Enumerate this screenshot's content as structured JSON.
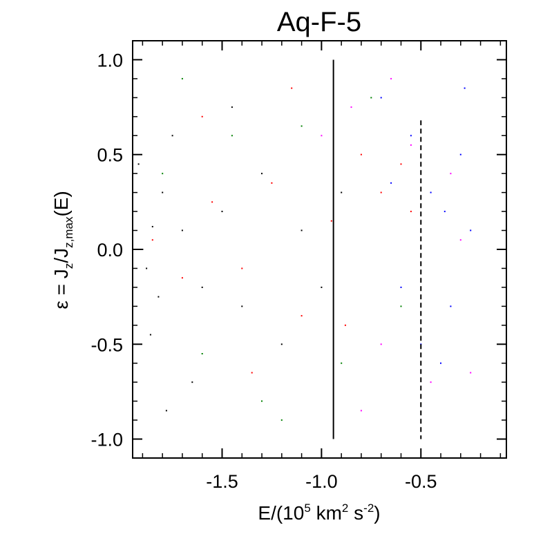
{
  "chart_data": {
    "type": "scatter",
    "title": "Aq-F-5",
    "xlabel": {
      "pre": "E/(10",
      "sup1": "5",
      "mid": " km",
      "sup2": "2",
      "mid2": " s",
      "sup3": "-2",
      "post": ")"
    },
    "ylabel": {
      "eps": "ε",
      "eq": " = J",
      "sub1": "z",
      "slash": "/J",
      "sub2": "z,max",
      "post": "(E)"
    },
    "xlim": [
      -1.95,
      -0.07
    ],
    "ylim": [
      -1.1,
      1.1
    ],
    "xticks": [
      -1.5,
      -1.0,
      -0.5
    ],
    "xtick_labels": [
      "-1.5",
      "-1.0",
      "-0.5"
    ],
    "yticks": [
      1.0,
      0.5,
      0.0,
      -0.5,
      -1.0
    ],
    "ytick_labels": [
      "1.0",
      "0.5",
      "0.0",
      "-0.5",
      "-1.0"
    ],
    "vertical_lines": [
      {
        "x": -0.94,
        "style": "solid",
        "y_range": [
          -1.0,
          1.0
        ]
      },
      {
        "x": -0.5,
        "style": "dashed",
        "y_range": [
          -1.0,
          0.68
        ]
      }
    ],
    "series_colors": [
      "#000000",
      "#ff0000",
      "#008000",
      "#ff00ff",
      "#0000ff"
    ],
    "series": [
      {
        "color": "#000000",
        "points": [
          [
            -1.9,
            0.0
          ],
          [
            -1.88,
            -0.1
          ],
          [
            -1.85,
            0.12
          ],
          [
            -1.82,
            -0.25
          ],
          [
            -1.8,
            0.3
          ],
          [
            -1.86,
            -0.45
          ],
          [
            -1.7,
            0.1
          ],
          [
            -1.6,
            -0.2
          ],
          [
            -1.5,
            0.2
          ],
          [
            -1.4,
            -0.3
          ],
          [
            -1.3,
            0.4
          ],
          [
            -1.2,
            -0.5
          ],
          [
            -1.1,
            0.1
          ],
          [
            -1.0,
            -0.2
          ],
          [
            -0.9,
            0.3
          ],
          [
            -1.75,
            0.6
          ],
          [
            -1.65,
            -0.7
          ],
          [
            -1.92,
            0.45
          ],
          [
            -1.78,
            -0.85
          ],
          [
            -1.45,
            0.75
          ]
        ]
      },
      {
        "color": "#ff0000",
        "points": [
          [
            -1.85,
            0.05
          ],
          [
            -1.7,
            -0.15
          ],
          [
            -1.55,
            0.25
          ],
          [
            -1.4,
            -0.1
          ],
          [
            -1.25,
            0.35
          ],
          [
            -1.1,
            -0.35
          ],
          [
            -0.95,
            0.15
          ],
          [
            -0.8,
            0.5
          ],
          [
            -0.7,
            0.3
          ],
          [
            -0.6,
            0.45
          ],
          [
            -1.6,
            0.7
          ],
          [
            -1.35,
            -0.65
          ],
          [
            -1.15,
            0.85
          ],
          [
            -0.88,
            -0.4
          ],
          [
            -0.55,
            0.2
          ]
        ]
      },
      {
        "color": "#008000",
        "points": [
          [
            -1.8,
            0.4
          ],
          [
            -1.6,
            -0.55
          ],
          [
            -1.45,
            0.6
          ],
          [
            -1.3,
            -0.8
          ],
          [
            -1.1,
            0.65
          ],
          [
            -0.9,
            -0.6
          ],
          [
            -0.75,
            0.8
          ],
          [
            -0.6,
            -0.3
          ],
          [
            -1.7,
            0.9
          ],
          [
            -1.2,
            -0.9
          ]
        ]
      },
      {
        "color": "#ff00ff",
        "points": [
          [
            -1.0,
            0.6
          ],
          [
            -0.85,
            0.75
          ],
          [
            -0.7,
            -0.5
          ],
          [
            -0.55,
            0.55
          ],
          [
            -0.45,
            -0.7
          ],
          [
            -0.35,
            0.4
          ],
          [
            -0.25,
            -0.65
          ],
          [
            -0.65,
            0.9
          ],
          [
            -0.8,
            -0.85
          ],
          [
            -0.3,
            0.05
          ]
        ]
      },
      {
        "color": "#0000ff",
        "points": [
          [
            -0.65,
            0.35
          ],
          [
            -0.55,
            0.6
          ],
          [
            -0.45,
            0.3
          ],
          [
            -0.38,
            0.2
          ],
          [
            -0.3,
            0.5
          ],
          [
            -0.25,
            0.1
          ],
          [
            -0.6,
            -0.2
          ],
          [
            -0.5,
            -0.5
          ],
          [
            -0.4,
            -0.6
          ],
          [
            -0.7,
            0.8
          ],
          [
            -0.28,
            0.85
          ],
          [
            -0.35,
            -0.3
          ]
        ]
      }
    ]
  }
}
